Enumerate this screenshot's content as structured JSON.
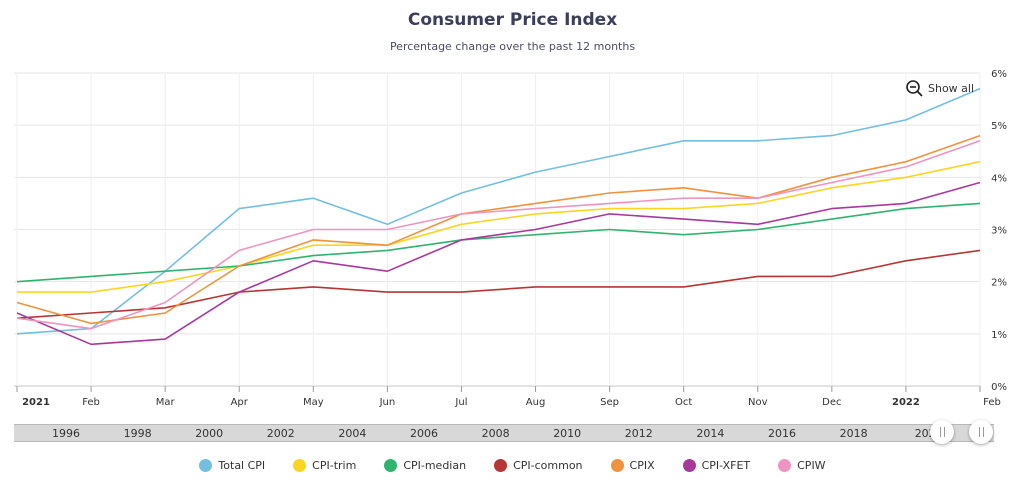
{
  "chart_data": {
    "type": "line",
    "title": "Consumer Price Index",
    "subtitle": "Percentage change over the past 12 months",
    "x": [
      "2021",
      "Feb",
      "Mar",
      "Apr",
      "May",
      "Jun",
      "Jul",
      "Aug",
      "Sep",
      "Oct",
      "Nov",
      "Dec",
      "2022",
      "Feb"
    ],
    "x_dates": [
      "2021-01",
      "2021-02",
      "2021-03",
      "2021-04",
      "2021-05",
      "2021-06",
      "2021-07",
      "2021-08",
      "2021-09",
      "2021-10",
      "2021-11",
      "2021-12",
      "2022-01",
      "2022-02"
    ],
    "bold_ticks": [
      "2021",
      "2022"
    ],
    "y_ticks": [
      "0%",
      "1%",
      "2%",
      "3%",
      "4%",
      "5%",
      "6%"
    ],
    "ylim": [
      0,
      6
    ],
    "grid": true,
    "legend_position": "bottom",
    "series": [
      {
        "name": "Total CPI",
        "color": "#74bfdf",
        "values": [
          1.0,
          1.1,
          2.2,
          3.4,
          3.6,
          3.1,
          3.7,
          4.1,
          4.4,
          4.7,
          4.7,
          4.8,
          5.1,
          5.7
        ]
      },
      {
        "name": "CPI-trim",
        "color": "#fcd521",
        "values": [
          1.8,
          1.8,
          2.0,
          2.3,
          2.7,
          2.7,
          3.1,
          3.3,
          3.4,
          3.4,
          3.5,
          3.8,
          4.0,
          4.3
        ]
      },
      {
        "name": "CPI-median",
        "color": "#2fb46f",
        "values": [
          2.0,
          2.1,
          2.2,
          2.3,
          2.5,
          2.6,
          2.8,
          2.9,
          3.0,
          2.9,
          3.0,
          3.2,
          3.4,
          3.5
        ]
      },
      {
        "name": "CPI-common",
        "color": "#b83535",
        "values": [
          1.3,
          1.4,
          1.5,
          1.8,
          1.9,
          1.8,
          1.8,
          1.9,
          1.9,
          1.9,
          2.1,
          2.1,
          2.4,
          2.6
        ]
      },
      {
        "name": "CPIX",
        "color": "#f0923e",
        "values": [
          1.6,
          1.2,
          1.4,
          2.3,
          2.8,
          2.7,
          3.3,
          3.5,
          3.7,
          3.8,
          3.6,
          4.0,
          4.3,
          4.8
        ]
      },
      {
        "name": "CPI-XFET",
        "color": "#a8399c",
        "values": [
          1.4,
          0.8,
          0.9,
          1.8,
          2.4,
          2.2,
          2.8,
          3.0,
          3.3,
          3.2,
          3.1,
          3.4,
          3.5,
          3.9
        ]
      },
      {
        "name": "CPIW",
        "color": "#ee94c0",
        "values": [
          1.3,
          1.1,
          1.6,
          2.6,
          3.0,
          3.0,
          3.3,
          3.4,
          3.5,
          3.6,
          3.6,
          3.9,
          4.2,
          4.7
        ]
      }
    ]
  },
  "controls": {
    "show_all_label": "Show all",
    "show_all_icon": "zoom-out-icon"
  },
  "navigator": {
    "labels": [
      "1996",
      "1998",
      "2000",
      "2002",
      "2004",
      "2006",
      "2008",
      "2010",
      "2012",
      "2014",
      "2016",
      "2018",
      "202"
    ]
  }
}
